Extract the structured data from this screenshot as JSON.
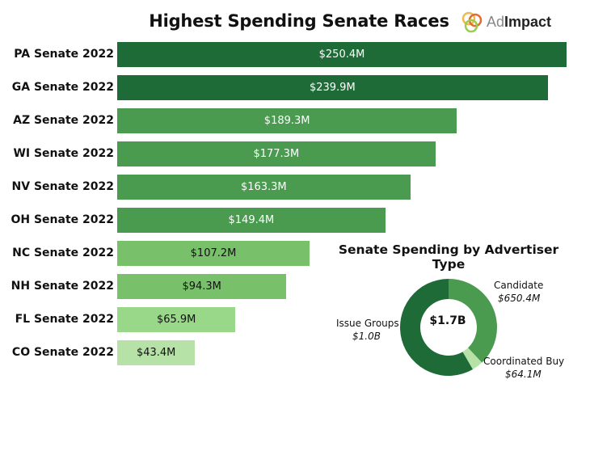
{
  "logo": {
    "prefix": "Ad",
    "suffix": "Impact"
  },
  "chart_data": [
    {
      "type": "bar",
      "orientation": "horizontal",
      "title": "Highest Spending Senate Races",
      "categories": [
        "PA Senate 2022",
        "GA Senate 2022",
        "AZ Senate 2022",
        "WI Senate 2022",
        "NV Senate 2022",
        "OH Senate 2022",
        "NC Senate 2022",
        "NH Senate 2022",
        "FL Senate 2022",
        "CO Senate 2022"
      ],
      "values": [
        250.4,
        239.9,
        189.3,
        177.3,
        163.3,
        149.4,
        107.2,
        94.3,
        65.9,
        43.4
      ],
      "value_labels": [
        "$250.4M",
        "$239.9M",
        "$189.3M",
        "$177.3M",
        "$163.3M",
        "$149.4M",
        "$107.2M",
        "$94.3M",
        "$65.9M",
        "$43.4M"
      ],
      "bar_colors": [
        "#1e6b38",
        "#1e6b38",
        "#4a9a50",
        "#4a9a50",
        "#4a9a50",
        "#4a9a50",
        "#79c06a",
        "#79c06a",
        "#9ad889",
        "#b6e2a8"
      ],
      "label_colors": [
        "#ffffff",
        "#ffffff",
        "#ffffff",
        "#ffffff",
        "#ffffff",
        "#ffffff",
        "#111111",
        "#111111",
        "#111111",
        "#111111"
      ],
      "xlim": [
        0,
        250.4
      ],
      "xlabel": "",
      "ylabel": "",
      "grid": false
    },
    {
      "type": "pie",
      "style": "donut",
      "title": "Senate Spending by Advertiser Type",
      "center_label": "$1.7B",
      "slices": [
        {
          "name": "Candidate",
          "value": 650.4,
          "value_label": "$650.4M",
          "color": "#4a9a50"
        },
        {
          "name": "Coordinated Buy",
          "value": 64.1,
          "value_label": "$64.1M",
          "color": "#b6e2a8"
        },
        {
          "name": "Issue Groups",
          "value": 1000,
          "value_label": "$1.0B",
          "color": "#1e6b38"
        }
      ]
    }
  ]
}
